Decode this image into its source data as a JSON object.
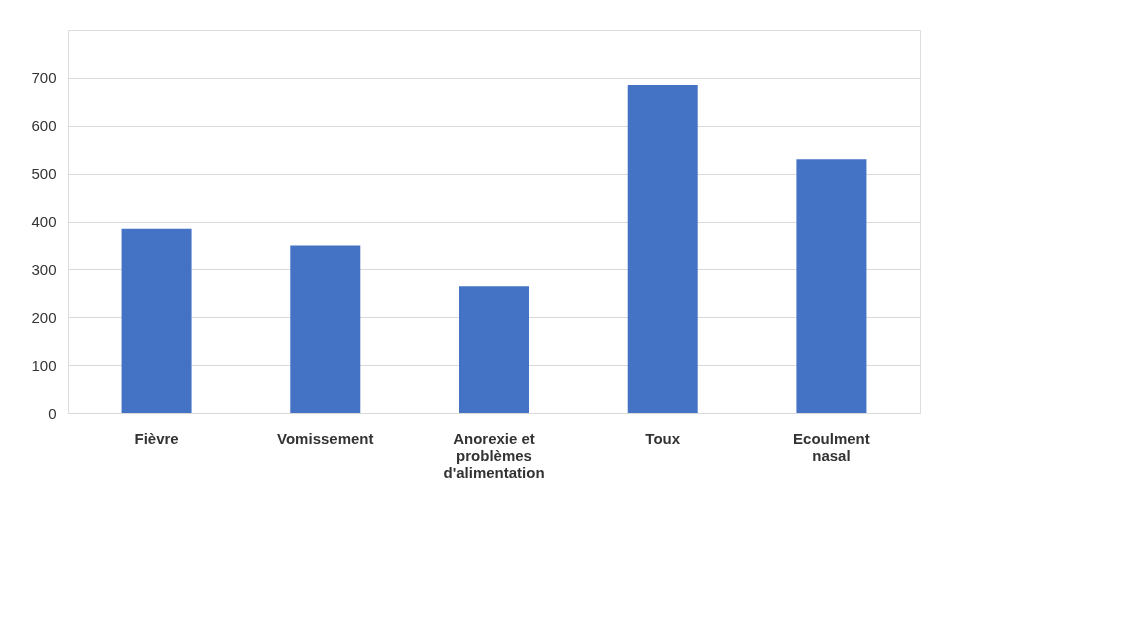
{
  "chart_data": {
    "type": "bar",
    "categories": [
      "Fièvre",
      "Vomissement",
      "Anorexie et problèmes d'alimentation",
      "Toux",
      "Ecoulment nasal"
    ],
    "values": [
      385,
      350,
      265,
      685,
      530
    ],
    "color": "#4472c4",
    "ylim": [
      0,
      800
    ],
    "yticks": [
      0,
      100,
      200,
      300,
      400,
      500,
      600,
      700
    ],
    "grid": "y"
  }
}
